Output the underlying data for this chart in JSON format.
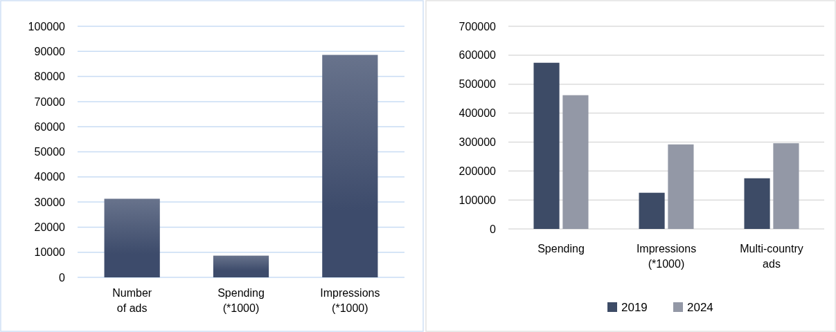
{
  "chart_data": [
    {
      "type": "bar",
      "categories": [
        "Number of ads",
        "Spending (*1000)",
        "Impressions (*1000)"
      ],
      "values": [
        31300,
        8650,
        88600
      ],
      "color": "#3d4b6b",
      "ylim": [
        0,
        100000
      ],
      "yticks": [
        0,
        10000,
        20000,
        30000,
        40000,
        50000,
        60000,
        70000,
        80000,
        90000,
        100000
      ],
      "grid": "y",
      "legend": false
    },
    {
      "type": "bar",
      "categories": [
        "Spending",
        "Impressions (*1000)",
        "Multi-country ads"
      ],
      "series": [
        {
          "name": "2019",
          "color": "#3d4b66",
          "values": [
            574000,
            125000,
            175000
          ]
        },
        {
          "name": "2024",
          "color": "#9398a6",
          "values": [
            462000,
            292000,
            296000
          ]
        }
      ],
      "ylim": [
        0,
        700000
      ],
      "yticks": [
        0,
        100000,
        200000,
        300000,
        400000,
        500000,
        600000,
        700000
      ],
      "grid": "y",
      "legend": "bottom"
    }
  ]
}
